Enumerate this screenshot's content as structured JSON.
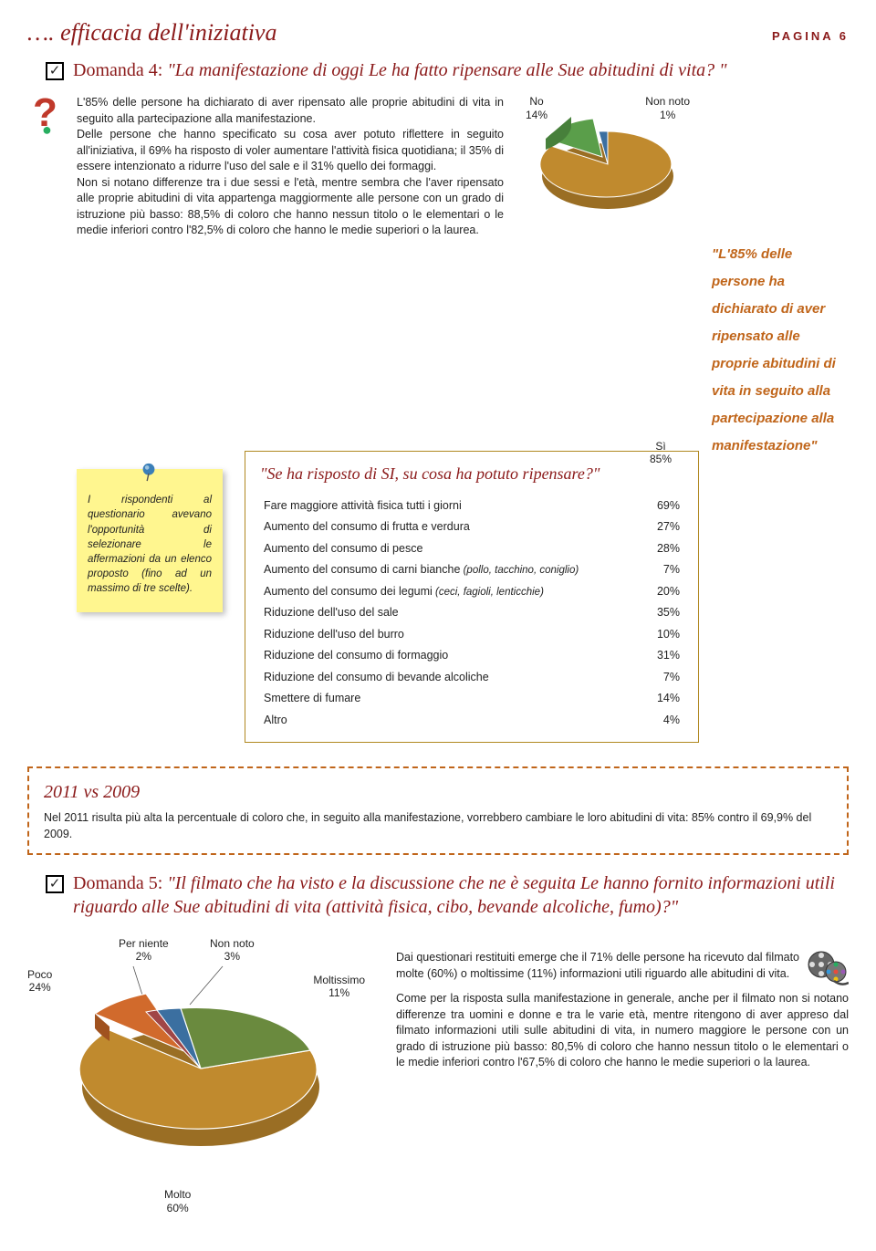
{
  "header": {
    "title": "…. efficacia dell'iniziativa",
    "page_label": "PAGINA 6"
  },
  "question4": {
    "label": "Domanda 4:",
    "text": "\"La manifestazione di oggi Le ha fatto ripensare alle Sue abitudini di vita? \""
  },
  "body1": "L'85% delle persone ha dichiarato di aver ripensato alle proprie abitudini di vita in seguito alla partecipazione alla manifestazione.",
  "body2": "Delle persone che hanno specificato su cosa aver potuto riflettere in seguito all'iniziativa, il 69% ha risposto di voler aumentare l'attività fisica quotidiana; il 35% di essere intenzionato a ridurre l'uso del sale e il 31% quello dei formaggi.",
  "body3": "Non si notano differenze tra i due sessi e l'età, mentre sembra che l'aver ripensato alle proprie abitudini di vita appartenga maggiormente alle persone con un grado di istruzione più basso: 88,5% di coloro che hanno nessun titolo o le elementari o le medie inferiori contro l'82,5% di coloro che hanno le medie superiori o la laurea.",
  "pie1": {
    "slices": [
      {
        "label": "Sì",
        "value": 85,
        "pct_label": "85%",
        "color": "#c08a2e"
      },
      {
        "label": "No",
        "value": 14,
        "pct_label": "14%",
        "color": "#5a9e4a"
      },
      {
        "label": "Non noto",
        "value": 1,
        "pct_label": "1%",
        "color": "#3b6fa0"
      }
    ]
  },
  "callout": "\"L'85% delle persone ha dichiarato di aver ripensato alle proprie abitudini di vita in seguito alla partecipazione alla manifestazione\"",
  "sticky": "I rispondenti al questionario avevano l'opportunità di selezionare le affermazioni da un elenco proposto (fino ad un massimo di tre scelte).",
  "table": {
    "title": "\"Se ha risposto di SI, su cosa ha potuto ripensare?\"",
    "rows": [
      {
        "label": "Fare maggiore attività fisica tutti i giorni",
        "pct": "69%"
      },
      {
        "label": "Aumento del consumo di  frutta e verdura",
        "pct": "27%"
      },
      {
        "label": "Aumento del consumo di pesce",
        "pct": "28%"
      },
      {
        "label": "Aumento del consumo di  carni bianche",
        "note": "(pollo, tacchino, coniglio)",
        "pct": "7%"
      },
      {
        "label": "Aumento del consumo dei legumi",
        "note": "(ceci, fagioli, lenticchie)",
        "pct": "20%"
      },
      {
        "label": "Riduzione dell'uso del sale",
        "pct": "35%"
      },
      {
        "label": "Riduzione dell'uso del burro",
        "pct": "10%"
      },
      {
        "label": "Riduzione del consumo di formaggio",
        "pct": "31%"
      },
      {
        "label": "Riduzione del consumo di bevande alcoliche",
        "pct": "7%"
      },
      {
        "label": "Smettere di fumare",
        "pct": "14%"
      },
      {
        "label": "Altro",
        "pct": "4%"
      }
    ]
  },
  "dashed": {
    "title": "2011 vs 2009",
    "text": "Nel 2011 risulta più alta la percentuale di coloro che, in seguito alla manifestazione, vorrebbero cambiare le loro abitudini di vita: 85% contro il 69,9% del 2009."
  },
  "question5": {
    "label": "Domanda 5:",
    "text": "\"Il filmato che ha visto e la discussione che ne è seguita Le hanno fornito informazioni utili riguardo alle Sue abitudini di vita (attività fisica, cibo, bevande alcoliche, fumo)?\""
  },
  "pie2": {
    "slices": [
      {
        "label": "Molto",
        "value": 60,
        "pct_label": "60%",
        "color": "#c08a2e"
      },
      {
        "label": "Poco",
        "value": 24,
        "pct_label": "24%",
        "color": "#d16a2c"
      },
      {
        "label": "Moltissimo",
        "value": 11,
        "pct_label": "11%",
        "color": "#6a8a3e"
      },
      {
        "label": "Non noto",
        "value": 3,
        "pct_label": "3%",
        "color": "#3b6fa0"
      },
      {
        "label": "Per niente",
        "value": 2,
        "pct_label": "2%",
        "color": "#a04646"
      }
    ]
  },
  "body5a": "Dai questionari restituiti emerge che il 71% delle persone ha ricevuto dal filmato molte (60%) o moltissime (11%) informazioni utili riguardo alle abitudini di vita.",
  "body5b": "Come per la risposta sulla manifestazione in generale, anche per il filmato non si notano differenze tra uomini e donne e tra le varie età, mentre ritengono di aver appreso dal filmato informazioni utili sulle abitudini di vita, in numero maggiore le persone con un grado di istruzione più basso: 80,5% di coloro che hanno nessun titolo o le elementari o le medie inferiori contro l'67,5% di coloro  che hanno le medie superiori o la laurea.",
  "colors": {
    "brand_red": "#8b1a1a",
    "accent_orange": "#c0651a",
    "sticky": "#fff68f",
    "table_border": "#b08820"
  }
}
